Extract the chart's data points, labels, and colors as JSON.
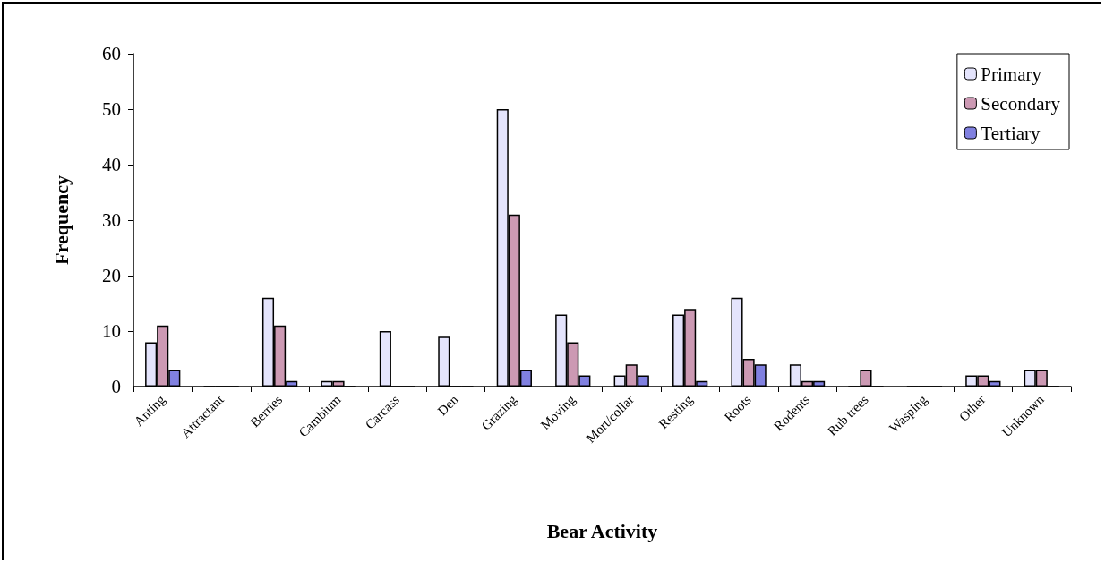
{
  "chart_data": {
    "type": "bar",
    "xlabel": "Bear Activity",
    "ylabel": "Frequency",
    "categories": [
      "Anting",
      "Attractant",
      "Berries",
      "Cambium",
      "Carcass",
      "Den",
      "Grazing",
      "Moving",
      "Mort/collar",
      "Resting",
      "Roots",
      "Rodents",
      "Rub trees",
      "Wasping",
      "Other",
      "Unknown"
    ],
    "series": [
      {
        "name": "Primary",
        "color": "#e4e4fc",
        "values": [
          8,
          0,
          16,
          1,
          10,
          9,
          50,
          13,
          2,
          13,
          16,
          4,
          0,
          0,
          2,
          3
        ]
      },
      {
        "name": "Secondary",
        "color": "#cc99b3",
        "values": [
          11,
          0,
          11,
          1,
          0,
          0,
          31,
          8,
          4,
          14,
          5,
          1,
          3,
          0,
          2,
          3
        ]
      },
      {
        "name": "Tertiary",
        "color": "#8080e0",
        "values": [
          3,
          0,
          1,
          0,
          0,
          0,
          3,
          2,
          2,
          1,
          4,
          1,
          0,
          0,
          1,
          0
        ]
      }
    ],
    "ylim": [
      0,
      60
    ],
    "yticks": [
      0,
      10,
      20,
      30,
      40,
      50,
      60
    ],
    "grid": false,
    "legend": "top right"
  }
}
